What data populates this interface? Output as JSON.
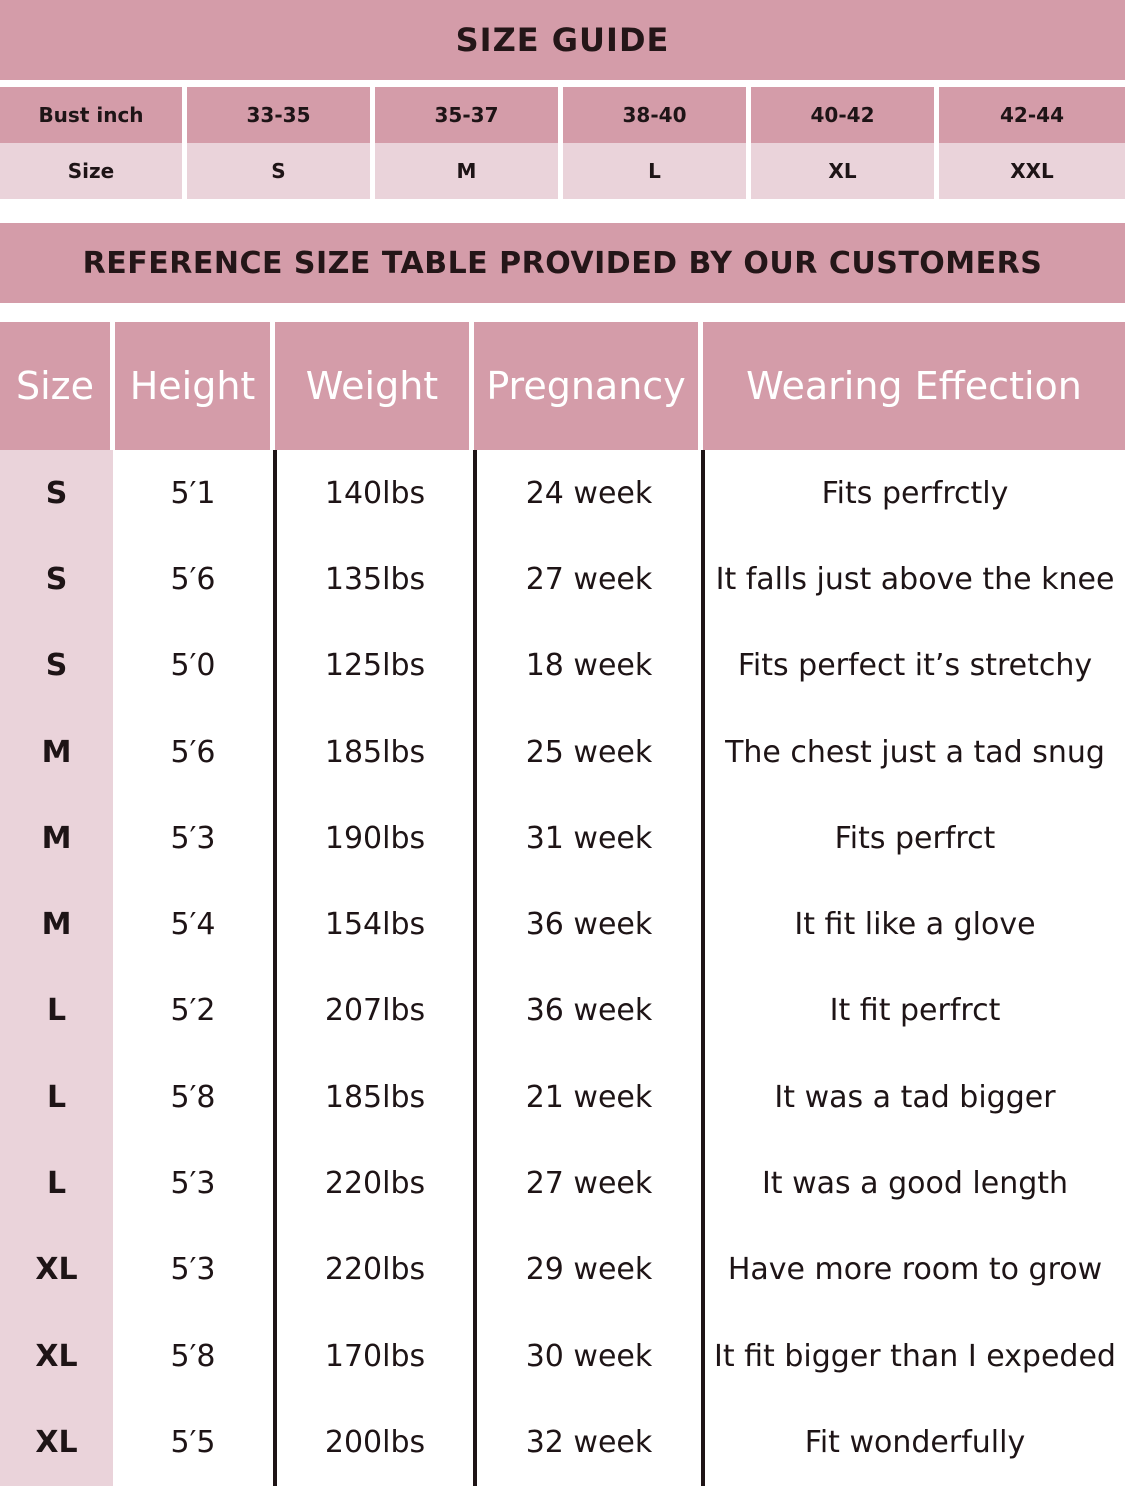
{
  "size_guide": {
    "title": "SIZE GUIDE",
    "bust_label": "Bust inch",
    "size_label": "Size",
    "columns": [
      {
        "bust": "33-35",
        "size": "S"
      },
      {
        "bust": "35-37",
        "size": "M"
      },
      {
        "bust": "38-40",
        "size": "L"
      },
      {
        "bust": "40-42",
        "size": "XL"
      },
      {
        "bust": "42-44",
        "size": "XXL"
      }
    ]
  },
  "reference": {
    "title": "REFERENCE SIZE TABLE PROVIDED BY OUR CUSTOMERS",
    "headers": [
      "Size",
      "Height",
      "Weight",
      "Pregnancy",
      "Wearing Effection"
    ],
    "rows": [
      [
        "S",
        "5′1",
        "140lbs",
        "24 week",
        "Fits perfrctly"
      ],
      [
        "S",
        "5′6",
        "135lbs",
        "27 week",
        "It falls just above the knee"
      ],
      [
        "S",
        "5′0",
        "125lbs",
        "18 week",
        "Fits perfect it’s stretchy"
      ],
      [
        "M",
        "5′6",
        "185lbs",
        "25 week",
        "The chest just a tad snug"
      ],
      [
        "M",
        "5′3",
        "190lbs",
        "31 week",
        "Fits perfrct"
      ],
      [
        "M",
        "5′4",
        "154lbs",
        "36 week",
        "It fit like a glove"
      ],
      [
        "L",
        "5′2",
        "207lbs",
        "36 week",
        "It fit perfrct"
      ],
      [
        "L",
        "5′8",
        "185lbs",
        "21 week",
        "It was a tad bigger"
      ],
      [
        "L",
        "5′3",
        "220lbs",
        "27 week",
        "It was a good length"
      ],
      [
        "XL",
        "5′3",
        "220lbs",
        "29 week",
        "Have more room to grow"
      ],
      [
        "XL",
        "5′8",
        "170lbs",
        "30 week",
        "It fit bigger than I expeded"
      ],
      [
        "XL",
        "5′5",
        "200lbs",
        "32 week",
        "Fit wonderfully"
      ]
    ]
  },
  "colors": {
    "header_pink": "#d49ca9",
    "light_pink": "#ead3da"
  }
}
